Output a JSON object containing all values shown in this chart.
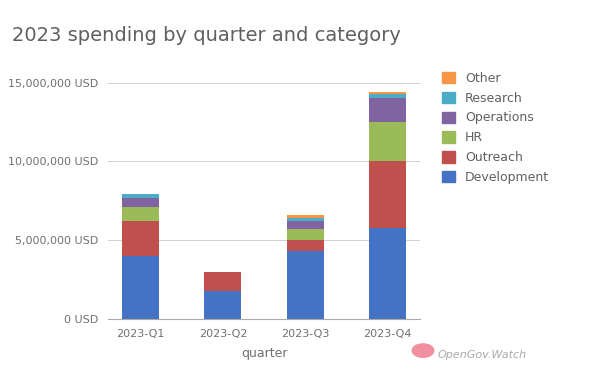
{
  "title": "2023 spending by quarter and category",
  "xlabel": "quarter",
  "quarters": [
    "2023-Q1",
    "2023-Q2",
    "2023-Q3",
    "2023-Q4"
  ],
  "categories": [
    "Development",
    "Outreach",
    "HR",
    "Operations",
    "Research",
    "Other"
  ],
  "colors": {
    "Development": "#4472C4",
    "Outreach": "#C0504D",
    "HR": "#9BBB59",
    "Operations": "#8064A2",
    "Research": "#4BACC6",
    "Other": "#F79646"
  },
  "values": {
    "Development": [
      4000000,
      1800000,
      4300000,
      5800000
    ],
    "Outreach": [
      2200000,
      1200000,
      700000,
      4200000
    ],
    "HR": [
      900000,
      0,
      700000,
      2500000
    ],
    "Operations": [
      600000,
      0,
      500000,
      1500000
    ],
    "Research": [
      200000,
      0,
      200000,
      300000
    ],
    "Other": [
      0,
      0,
      200000,
      100000
    ]
  },
  "ylim": [
    0,
    16000000
  ],
  "yticks": [
    0,
    5000000,
    10000000,
    15000000
  ],
  "ytick_labels": [
    "0 USD",
    "5,000,000 USD",
    "10,000,000 USD",
    "15,000,000 USD"
  ],
  "background_color": "#ffffff",
  "grid_color": "#d0d0d0",
  "title_fontsize": 14,
  "axis_fontsize": 9,
  "tick_fontsize": 8,
  "legend_fontsize": 9,
  "bar_width": 0.45,
  "title_color": "#606060"
}
